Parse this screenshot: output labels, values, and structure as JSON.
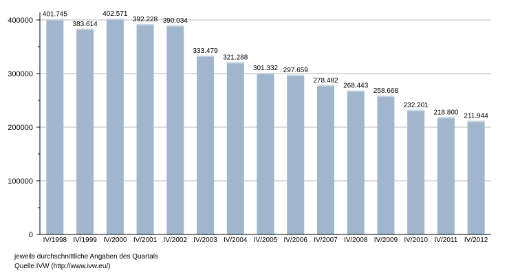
{
  "chart_data": {
    "type": "bar",
    "categories": [
      "IV/1998",
      "IV/1999",
      "IV/2000",
      "IV/2001",
      "IV/2002",
      "IV/2003",
      "IV/2004",
      "IV/2005",
      "IV/2006",
      "IV/2007",
      "IV/2008",
      "IV/2009",
      "IV/2010",
      "IV/2011",
      "IV/2012"
    ],
    "values": [
      401745,
      383614,
      402571,
      392228,
      390034,
      333479,
      321288,
      301332,
      297659,
      278482,
      268443,
      258668,
      232201,
      218800,
      211944
    ],
    "value_labels": [
      "401.745",
      "383.614",
      "402.571",
      "392.228",
      "390.034",
      "333.479",
      "321.288",
      "301.332",
      "297.659",
      "278.482",
      "268.443",
      "258.668",
      "232.201",
      "218.800",
      "211.944"
    ],
    "yticks": [
      0,
      100000,
      200000,
      300000,
      400000
    ],
    "ytick_labels": [
      "0",
      "100000",
      "200000",
      "300000",
      "400000"
    ],
    "ylim": [
      0,
      410000
    ],
    "grid": true,
    "bar_color": "#9fb6cd"
  },
  "notes": {
    "line1": "jeweils durchschnittliche Angaben des Quartals",
    "line2": "Quelle IVW (http://www.ivw.eu/)"
  }
}
